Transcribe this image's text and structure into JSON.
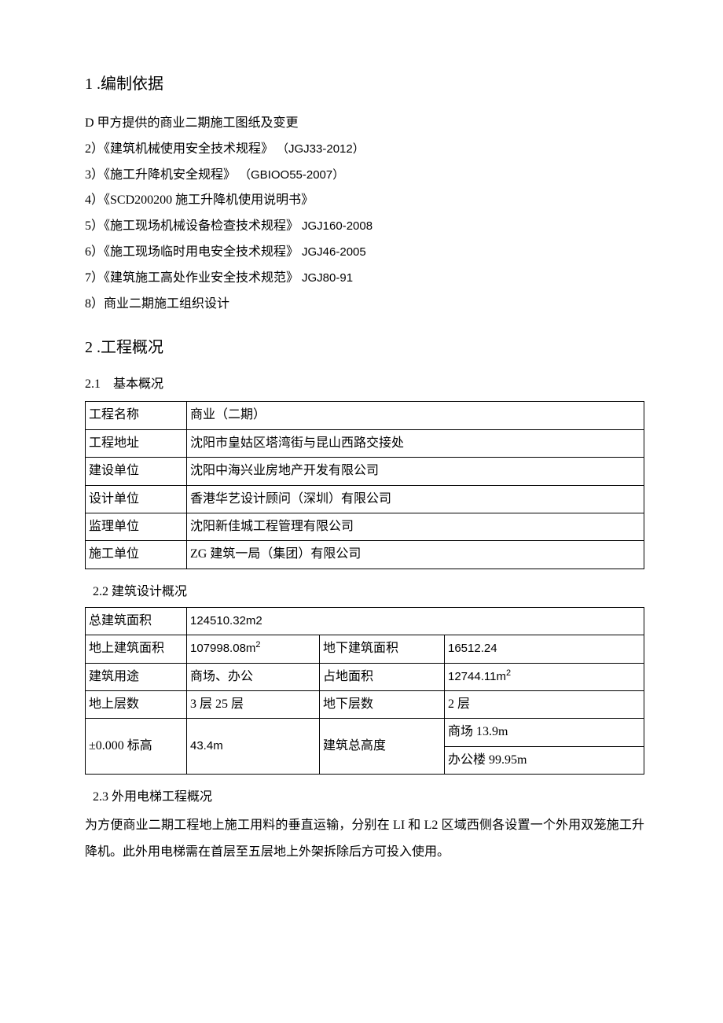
{
  "section1": {
    "heading": "1 .编制依据",
    "items": [
      {
        "text": "D 甲方提供的商业二期施工图纸及变更",
        "code": ""
      },
      {
        "text": "2）《建筑机械使用安全技术规程》",
        "code": "（JGJ33-2012）"
      },
      {
        "text": "3）《施工升降机安全规程》",
        "code": "（GBIOO55-2007）"
      },
      {
        "text": "4）《SCD200200 施工升降机使用说明书》",
        "code": ""
      },
      {
        "text": "5）《施工现场机械设备检查技术规程》",
        "code": "JGJ160-2008"
      },
      {
        "text": "6）《施工现场临时用电安全技术规程》",
        "code": "JGJ46-2005"
      },
      {
        "text": "7）《建筑施工高处作业安全技术规范》",
        "code": "JGJ80-91"
      },
      {
        "text": "8）商业二期施工组织设计",
        "code": ""
      }
    ]
  },
  "section2": {
    "heading": "2 .工程概况",
    "sub1": {
      "heading": "2.1 基本概况",
      "rows": [
        {
          "label": "工程名称",
          "value": "商业（二期）"
        },
        {
          "label": "工程地址",
          "value": "沈阳市皇姑区塔湾街与昆山西路交接处"
        },
        {
          "label": "建设单位",
          "value": "沈阳中海兴业房地产开发有限公司"
        },
        {
          "label": "设计单位",
          "value": "香港华艺设计顾问（深圳）有限公司"
        },
        {
          "label": "监理单位",
          "value": "沈阳新佳城工程管理有限公司"
        },
        {
          "label": "施工单位",
          "value": "ZG 建筑一局（集团）有限公司"
        }
      ]
    },
    "sub2": {
      "heading": "2.2 建筑设计概况",
      "row0": {
        "label": "总建筑面积",
        "value": "124510.32m2"
      },
      "rows": [
        {
          "c1": "地上建筑面积",
          "c2_html": "107998.08m<sup>2</sup>",
          "c3": "地下建筑面积",
          "c4": "16512.24"
        },
        {
          "c1": "建筑用途",
          "c2_html": "商场、办公",
          "c3": "占地面积",
          "c4_html": "12744.11m<sup>2</sup>"
        },
        {
          "c1": "地上层数",
          "c2_html": "3 层 25 层",
          "c3": "地下层数",
          "c4": "2 层"
        }
      ],
      "last": {
        "c1": "±0.000 标高",
        "c2": "43.4m",
        "c3": "建筑总高度",
        "c4a": "商场 13.9m",
        "c4b": "办公楼 99.95m"
      }
    },
    "sub3": {
      "heading": "2.3 外用电梯工程概况",
      "para": "为方便商业二期工程地上施工用料的垂直运输，分别在 LI 和 L2 区域西侧各设置一个外用双笼施工升降机。此外用电梯需在首层至五层地上外架拆除后方可投入使用。"
    }
  }
}
